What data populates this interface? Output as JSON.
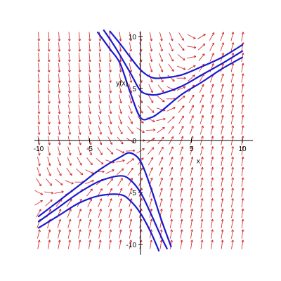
{
  "chart_data": {
    "type": "direction-field",
    "title": "",
    "xlabel": "x",
    "ylabel": "y(x)",
    "xlim": [
      -10,
      10
    ],
    "ylim": [
      -11,
      10.5
    ],
    "x_ticks": [
      -10,
      -5,
      0,
      5,
      10
    ],
    "y_ticks": [
      -10,
      -5,
      0,
      5,
      10
    ],
    "x_tick_labels": [
      "-10",
      "-5",
      "0",
      "5",
      "10"
    ],
    "y_tick_labels": [
      "-10",
      "-5",
      "0",
      "5",
      "10"
    ],
    "grid": false,
    "field_color": "#d02020",
    "curve_color": "#1a1ad0",
    "field_grid": {
      "x_start": -10,
      "x_end": 10,
      "y_start": -10,
      "y_end": 10,
      "step": 1
    },
    "solution_curves": [
      {
        "points": [
          [
            -4.2,
            10.4
          ],
          [
            -3,
            8.8
          ],
          [
            -2,
            7.4
          ],
          [
            -1,
            4.6
          ],
          [
            0,
            2.2
          ],
          [
            1,
            2.2
          ],
          [
            2,
            2.8
          ],
          [
            4,
            4.4
          ],
          [
            6,
            5.6
          ],
          [
            8,
            6.9
          ],
          [
            10,
            8.0
          ]
        ]
      },
      {
        "points": [
          [
            -3.6,
            10.6
          ],
          [
            -2.5,
            9.0
          ],
          [
            -1,
            6.5
          ],
          [
            0,
            4.8
          ],
          [
            1,
            4.4
          ],
          [
            2,
            4.5
          ],
          [
            4,
            5.2
          ],
          [
            6,
            6.3
          ],
          [
            8,
            7.4
          ],
          [
            10,
            8.6
          ]
        ]
      },
      {
        "points": [
          [
            -3.0,
            10.5
          ],
          [
            -2,
            9.3
          ],
          [
            -1,
            8.0
          ],
          [
            0,
            6.8
          ],
          [
            1,
            6.1
          ],
          [
            2,
            6.0
          ],
          [
            4,
            6.3
          ],
          [
            6,
            7.1
          ],
          [
            8,
            8.0
          ],
          [
            10,
            9.2
          ]
        ]
      },
      {
        "points": [
          [
            -10,
            -7.3
          ],
          [
            -8,
            -5.8
          ],
          [
            -6,
            -4.3
          ],
          [
            -4,
            -2.8
          ],
          [
            -2,
            -1.6
          ],
          [
            -1,
            -1.2
          ],
          [
            0,
            -2.0
          ],
          [
            1,
            -4.5
          ],
          [
            2,
            -7.5
          ],
          [
            3,
            -10.2
          ]
        ]
      },
      {
        "points": [
          [
            -10,
            -7.8
          ],
          [
            -8,
            -6.4
          ],
          [
            -6,
            -5.0
          ],
          [
            -4,
            -3.9
          ],
          [
            -2,
            -3.4
          ],
          [
            -1,
            -3.8
          ],
          [
            0,
            -5.0
          ],
          [
            1,
            -7.0
          ],
          [
            2,
            -9.2
          ],
          [
            2.6,
            -10.4
          ]
        ]
      },
      {
        "points": [
          [
            -10,
            -8.4
          ],
          [
            -8,
            -7.2
          ],
          [
            -6,
            -6.0
          ],
          [
            -4,
            -5.3
          ],
          [
            -2,
            -5.2
          ],
          [
            -1,
            -5.8
          ],
          [
            0,
            -7.0
          ],
          [
            1,
            -8.8
          ],
          [
            1.8,
            -10.6
          ]
        ]
      }
    ]
  }
}
